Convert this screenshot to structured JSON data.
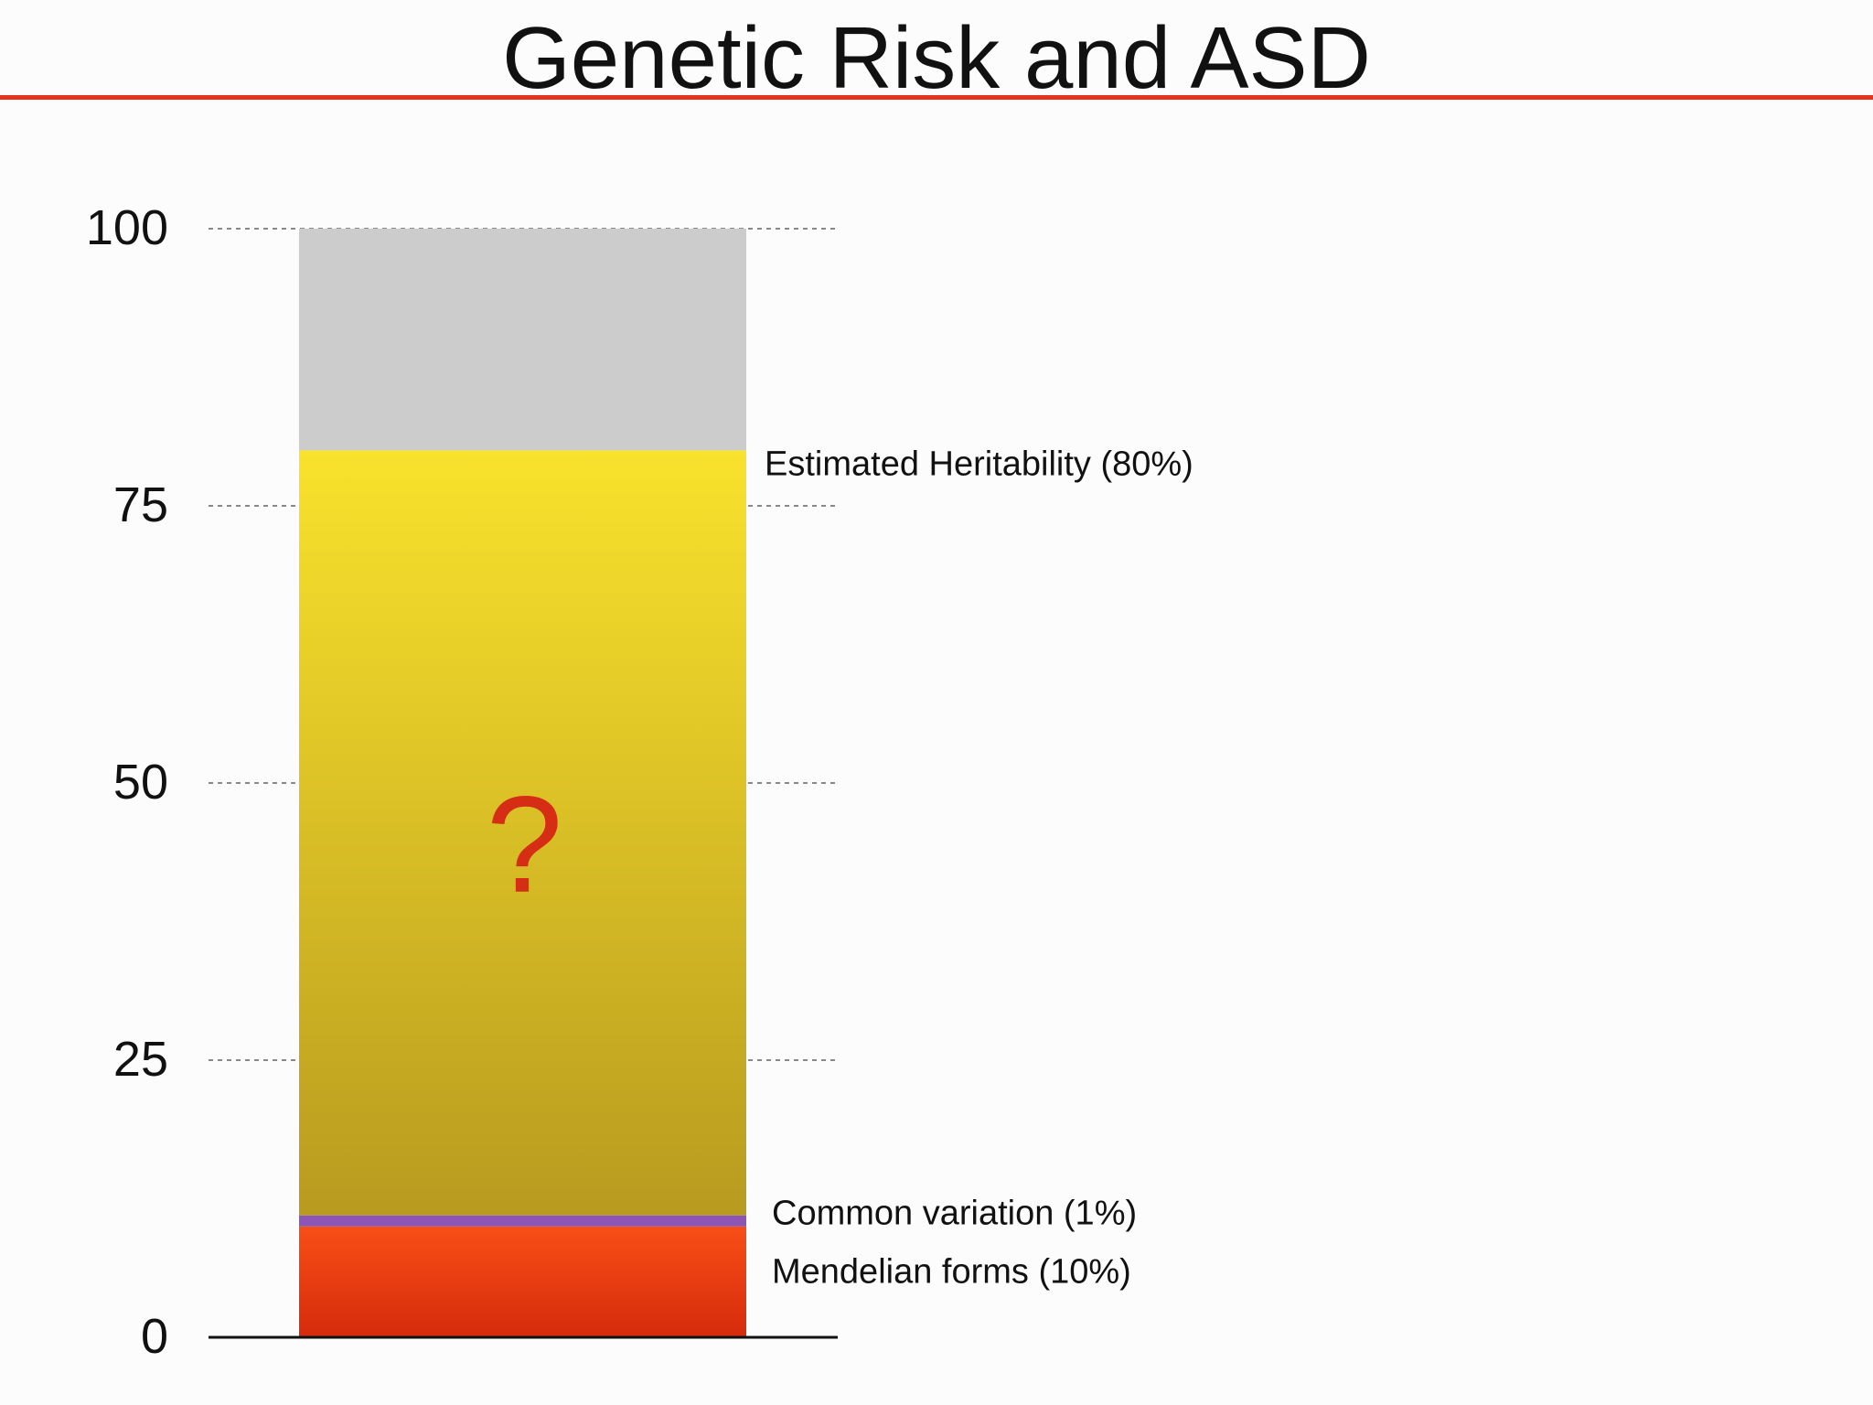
{
  "slide": {
    "title": "Genetic Risk and ASD"
  },
  "colors": {
    "title_rule": "#e4321f",
    "gray_segment": "#cdcccc",
    "heritability_top": "#f9e22c",
    "heritability_bottom": "#b89b1f",
    "common_variation": "#8b56b5",
    "mendelian_top": "#f84f16",
    "mendelian_bottom": "#d52b0c",
    "question_mark": "#d52e14",
    "gridline": "#888888",
    "axis": "#111111",
    "text": "#111111"
  },
  "chart_data": {
    "type": "bar",
    "stacked": true,
    "title": "Genetic Risk and ASD",
    "xlabel": "",
    "ylabel": "",
    "ylim": [
      0,
      100
    ],
    "yticks": [
      0,
      25,
      50,
      75,
      100
    ],
    "ytick_labels": [
      "0",
      "25",
      "50",
      "75",
      "100"
    ],
    "grid": true,
    "grid_style": "dashed",
    "legend": "none",
    "segments": [
      {
        "key": "mendelian",
        "from": 0,
        "to": 10,
        "label": "Mendelian forms (10%)"
      },
      {
        "key": "common",
        "from": 10,
        "to": 11,
        "label": "Common variation (1%)"
      },
      {
        "key": "heritability",
        "from": 11,
        "to": 80,
        "label": "Estimated Heritability (80%)",
        "annotation": "?"
      },
      {
        "key": "remainder",
        "from": 80,
        "to": 100,
        "label": ""
      }
    ]
  }
}
